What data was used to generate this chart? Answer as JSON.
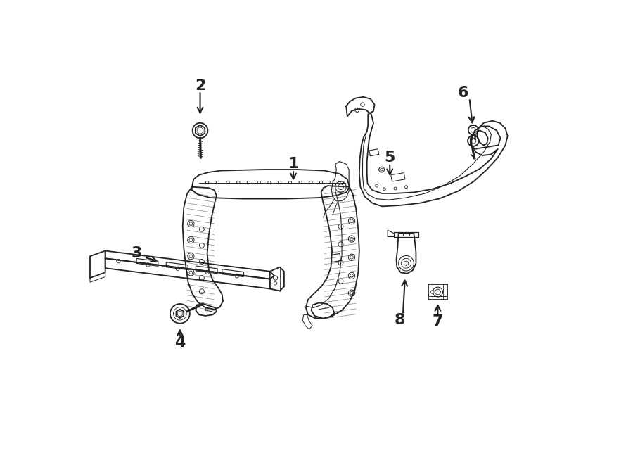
{
  "bg_color": "#ffffff",
  "line_color": "#222222",
  "lw": 1.3
}
